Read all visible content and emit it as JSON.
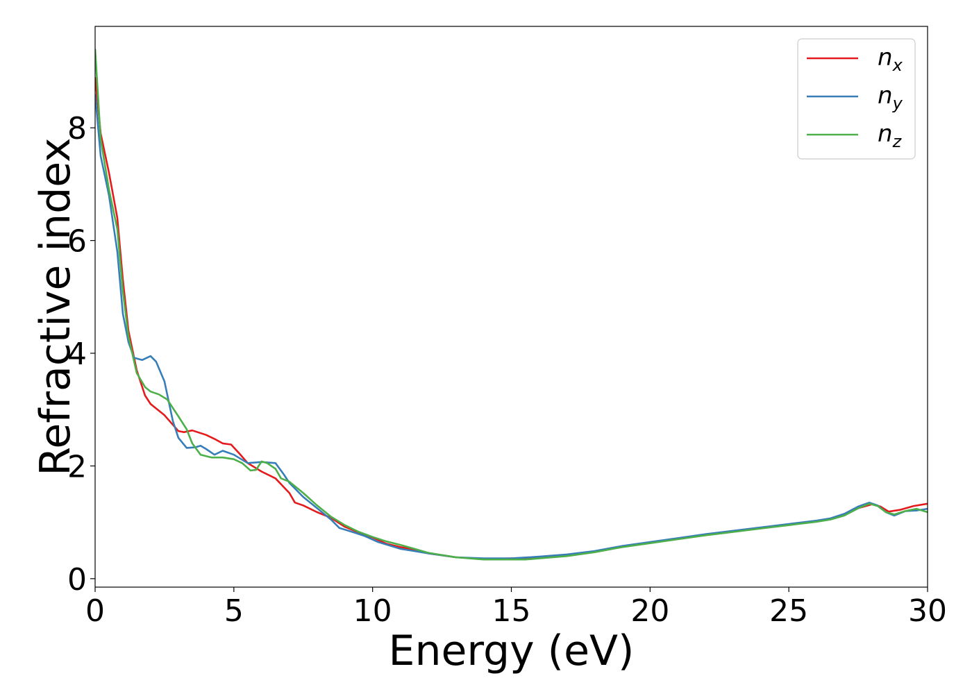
{
  "chart_data": {
    "type": "line",
    "title": "",
    "xlabel": "Energy (eV)",
    "ylabel": "Refractive index",
    "xlim": [
      0,
      30
    ],
    "ylim": [
      -0.15,
      9.8
    ],
    "xticks": [
      0,
      5,
      10,
      15,
      20,
      25,
      30
    ],
    "yticks": [
      0,
      2,
      4,
      6,
      8
    ],
    "grid": false,
    "legend_position": "top-right",
    "series": [
      {
        "name": "n",
        "subscript": "x",
        "color": "#e41a1c",
        "points": [
          [
            0,
            8.9
          ],
          [
            0.2,
            7.9
          ],
          [
            0.5,
            7.2
          ],
          [
            0.8,
            6.4
          ],
          [
            1.0,
            5.3
          ],
          [
            1.2,
            4.4
          ],
          [
            1.5,
            3.7
          ],
          [
            1.8,
            3.25
          ],
          [
            2.0,
            3.1
          ],
          [
            2.5,
            2.9
          ],
          [
            3.0,
            2.62
          ],
          [
            3.2,
            2.6
          ],
          [
            3.5,
            2.63
          ],
          [
            4.0,
            2.55
          ],
          [
            4.3,
            2.48
          ],
          [
            4.6,
            2.4
          ],
          [
            4.9,
            2.38
          ],
          [
            5.2,
            2.22
          ],
          [
            5.5,
            2.05
          ],
          [
            6.0,
            1.9
          ],
          [
            6.5,
            1.78
          ],
          [
            7.0,
            1.52
          ],
          [
            7.2,
            1.35
          ],
          [
            7.5,
            1.3
          ],
          [
            8.0,
            1.18
          ],
          [
            8.5,
            1.08
          ],
          [
            9.0,
            0.92
          ],
          [
            9.5,
            0.82
          ],
          [
            10.0,
            0.73
          ],
          [
            10.5,
            0.62
          ],
          [
            11.0,
            0.56
          ],
          [
            11.5,
            0.52
          ],
          [
            12.0,
            0.45
          ],
          [
            13.0,
            0.38
          ],
          [
            14.0,
            0.35
          ],
          [
            15.0,
            0.36
          ],
          [
            16.0,
            0.38
          ],
          [
            17.0,
            0.42
          ],
          [
            18.0,
            0.48
          ],
          [
            19.0,
            0.57
          ],
          [
            20.0,
            0.64
          ],
          [
            21.0,
            0.71
          ],
          [
            22.0,
            0.78
          ],
          [
            23.0,
            0.84
          ],
          [
            24.0,
            0.9
          ],
          [
            25.0,
            0.96
          ],
          [
            26.0,
            1.02
          ],
          [
            26.5,
            1.06
          ],
          [
            27.0,
            1.13
          ],
          [
            27.5,
            1.25
          ],
          [
            28.0,
            1.32
          ],
          [
            28.3,
            1.28
          ],
          [
            28.6,
            1.19
          ],
          [
            29.0,
            1.22
          ],
          [
            29.5,
            1.29
          ],
          [
            30.0,
            1.33
          ]
        ]
      },
      {
        "name": "n",
        "subscript": "y",
        "color": "#377eb8",
        "points": [
          [
            0,
            8.6
          ],
          [
            0.2,
            7.5
          ],
          [
            0.5,
            6.8
          ],
          [
            0.8,
            5.8
          ],
          [
            1.0,
            4.7
          ],
          [
            1.2,
            4.2
          ],
          [
            1.4,
            3.92
          ],
          [
            1.7,
            3.88
          ],
          [
            2.0,
            3.95
          ],
          [
            2.2,
            3.85
          ],
          [
            2.5,
            3.5
          ],
          [
            2.8,
            2.8
          ],
          [
            3.0,
            2.5
          ],
          [
            3.3,
            2.32
          ],
          [
            3.6,
            2.33
          ],
          [
            3.8,
            2.36
          ],
          [
            4.0,
            2.3
          ],
          [
            4.3,
            2.2
          ],
          [
            4.6,
            2.27
          ],
          [
            5.0,
            2.2
          ],
          [
            5.5,
            2.05
          ],
          [
            6.0,
            2.07
          ],
          [
            6.5,
            2.05
          ],
          [
            6.8,
            1.85
          ],
          [
            7.0,
            1.7
          ],
          [
            7.5,
            1.45
          ],
          [
            8.0,
            1.25
          ],
          [
            8.5,
            1.05
          ],
          [
            8.8,
            0.9
          ],
          [
            9.2,
            0.84
          ],
          [
            9.7,
            0.76
          ],
          [
            10.2,
            0.65
          ],
          [
            11.0,
            0.53
          ],
          [
            11.5,
            0.49
          ],
          [
            12.0,
            0.45
          ],
          [
            13.0,
            0.38
          ],
          [
            14.0,
            0.36
          ],
          [
            15.0,
            0.36
          ],
          [
            16.0,
            0.39
          ],
          [
            17.0,
            0.43
          ],
          [
            18.0,
            0.49
          ],
          [
            19.0,
            0.58
          ],
          [
            20.0,
            0.65
          ],
          [
            21.0,
            0.72
          ],
          [
            22.0,
            0.79
          ],
          [
            23.0,
            0.85
          ],
          [
            24.0,
            0.91
          ],
          [
            25.0,
            0.97
          ],
          [
            26.0,
            1.03
          ],
          [
            26.5,
            1.07
          ],
          [
            27.0,
            1.15
          ],
          [
            27.5,
            1.28
          ],
          [
            27.9,
            1.35
          ],
          [
            28.2,
            1.3
          ],
          [
            28.5,
            1.18
          ],
          [
            28.8,
            1.12
          ],
          [
            29.2,
            1.2
          ],
          [
            29.6,
            1.21
          ],
          [
            30.0,
            1.24
          ]
        ]
      },
      {
        "name": "n",
        "subscript": "z",
        "color": "#4daf4a",
        "points": [
          [
            0,
            9.4
          ],
          [
            0.2,
            7.8
          ],
          [
            0.5,
            6.9
          ],
          [
            0.8,
            6.2
          ],
          [
            1.0,
            5.1
          ],
          [
            1.2,
            4.3
          ],
          [
            1.5,
            3.65
          ],
          [
            1.8,
            3.4
          ],
          [
            2.0,
            3.32
          ],
          [
            2.3,
            3.27
          ],
          [
            2.6,
            3.18
          ],
          [
            3.0,
            2.88
          ],
          [
            3.3,
            2.65
          ],
          [
            3.5,
            2.4
          ],
          [
            3.8,
            2.2
          ],
          [
            4.2,
            2.15
          ],
          [
            4.6,
            2.15
          ],
          [
            5.0,
            2.12
          ],
          [
            5.3,
            2.05
          ],
          [
            5.6,
            1.92
          ],
          [
            5.8,
            1.93
          ],
          [
            6.0,
            2.08
          ],
          [
            6.2,
            2.05
          ],
          [
            6.5,
            1.95
          ],
          [
            6.7,
            1.78
          ],
          [
            7.0,
            1.72
          ],
          [
            7.5,
            1.52
          ],
          [
            8.0,
            1.3
          ],
          [
            8.5,
            1.1
          ],
          [
            9.0,
            0.95
          ],
          [
            9.5,
            0.83
          ],
          [
            10.0,
            0.74
          ],
          [
            10.5,
            0.66
          ],
          [
            11.0,
            0.6
          ],
          [
            11.5,
            0.53
          ],
          [
            12.0,
            0.46
          ],
          [
            13.0,
            0.38
          ],
          [
            14.0,
            0.34
          ],
          [
            15.0,
            0.34
          ],
          [
            15.5,
            0.34
          ],
          [
            16.0,
            0.36
          ],
          [
            17.0,
            0.4
          ],
          [
            18.0,
            0.47
          ],
          [
            19.0,
            0.56
          ],
          [
            20.0,
            0.63
          ],
          [
            21.0,
            0.7
          ],
          [
            22.0,
            0.77
          ],
          [
            23.0,
            0.83
          ],
          [
            24.0,
            0.89
          ],
          [
            25.0,
            0.95
          ],
          [
            26.0,
            1.01
          ],
          [
            26.5,
            1.05
          ],
          [
            27.0,
            1.12
          ],
          [
            27.5,
            1.25
          ],
          [
            27.9,
            1.33
          ],
          [
            28.2,
            1.29
          ],
          [
            28.5,
            1.18
          ],
          [
            28.8,
            1.14
          ],
          [
            29.2,
            1.2
          ],
          [
            29.6,
            1.24
          ],
          [
            30.0,
            1.18
          ]
        ]
      }
    ]
  }
}
